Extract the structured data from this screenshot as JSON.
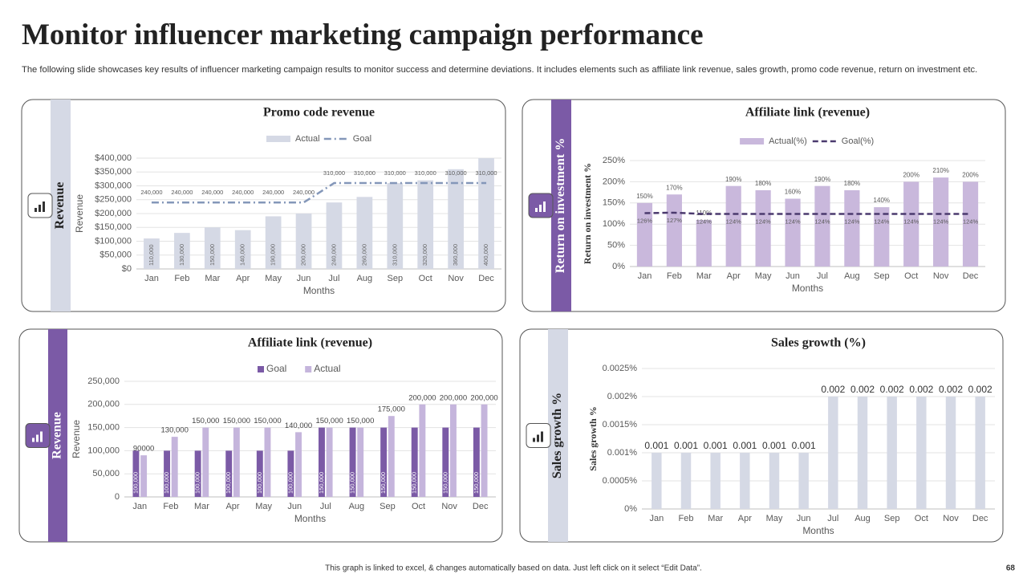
{
  "title": "Monitor influencer marketing campaign performance",
  "subtitle": "The following slide showcases key results of influencer marketing campaign results to monitor success and determine deviations. It includes elements such as affiliate link revenue, sales growth, promo code revenue, return on investment etc.",
  "footer": "This graph is linked to excel, & changes automatically based on data. Just left click on it select “Edit Data”.",
  "page_number": "68",
  "chart_data": [
    {
      "type": "combo",
      "side_label": "Revenue",
      "title": "Promo code revenue",
      "x_label": "Months",
      "y_label": "Revenue",
      "categories": [
        "Jan",
        "Feb",
        "Mar",
        "Apr",
        "May",
        "Jun",
        "Jul",
        "Aug",
        "Sep",
        "Oct",
        "Nov",
        "Dec"
      ],
      "series": [
        {
          "name": "Actual",
          "type": "bar",
          "color": "#d5d9e5",
          "values": [
            110000,
            130000,
            150000,
            140000,
            190000,
            200000,
            240000,
            260000,
            310000,
            320000,
            360000,
            400000
          ],
          "value_labels": [
            "110,000",
            "130,000",
            "150,000",
            "140,000",
            "190,000",
            "200,000",
            "240,000",
            "260,000",
            "310,000",
            "320,000",
            "360,000",
            "400,000"
          ]
        },
        {
          "name": "Goal",
          "type": "line",
          "color": "#8497b9",
          "line_style": "dashdot",
          "values": [
            240000,
            240000,
            240000,
            240000,
            240000,
            240000,
            310000,
            310000,
            310000,
            310000,
            310000,
            310000
          ],
          "value_labels": [
            "240,000",
            "240,000",
            "240,000",
            "240,000",
            "240,000",
            "240,000",
            "310,000",
            "310,000",
            "310,000",
            "310,000",
            "310,000",
            "310,000"
          ]
        }
      ],
      "ylim": [
        0,
        400000
      ],
      "yticks": [
        {
          "value": 0,
          "label": "$0"
        },
        {
          "value": 50000,
          "label": "$50,000"
        },
        {
          "value": 100000,
          "label": "$100,000"
        },
        {
          "value": 150000,
          "label": "$150,000"
        },
        {
          "value": 200000,
          "label": "$200,000"
        },
        {
          "value": 250000,
          "label": "$250,000"
        },
        {
          "value": 300000,
          "label": "$300,000"
        },
        {
          "value": 350000,
          "label": "$350,000"
        },
        {
          "value": 400000,
          "label": "$400,000"
        }
      ],
      "grid": true
    },
    {
      "type": "combo",
      "side_label": "Return on investment %",
      "title": "Affiliate link (revenue)",
      "x_label": "Months",
      "y_label": "Return on investment %",
      "categories": [
        "Jan",
        "Feb",
        "Mar",
        "Apr",
        "May",
        "Jun",
        "Jul",
        "Aug",
        "Sep",
        "Oct",
        "Nov",
        "Dec"
      ],
      "series": [
        {
          "name": "Actual(%)",
          "type": "bar",
          "color": "#c9b8dc",
          "values": [
            150,
            170,
            110,
            190,
            180,
            160,
            190,
            180,
            140,
            200,
            210,
            200
          ],
          "value_labels": [
            "150%",
            "170%",
            "110%",
            "190%",
            "180%",
            "160%",
            "190%",
            "180%",
            "140%",
            "200%",
            "210%",
            "200%"
          ]
        },
        {
          "name": "Goal(%)",
          "type": "line",
          "color": "#4b3a6e",
          "line_style": "dash",
          "values": [
            126,
            127,
            124,
            124,
            124,
            124,
            124,
            124,
            124,
            124,
            124,
            124
          ],
          "value_labels": [
            "126%",
            "127%",
            "124%",
            "124%",
            "124%",
            "124%",
            "124%",
            "124%",
            "124%",
            "124%",
            "124%",
            "124%"
          ]
        }
      ],
      "ylim": [
        0,
        250
      ],
      "yticks": [
        {
          "value": 0,
          "label": "0%"
        },
        {
          "value": 50,
          "label": "50%"
        },
        {
          "value": 100,
          "label": "100%"
        },
        {
          "value": 150,
          "label": "150%"
        },
        {
          "value": 200,
          "label": "200%"
        },
        {
          "value": 250,
          "label": "250%"
        }
      ],
      "grid": true
    },
    {
      "type": "bar",
      "side_label": "Revenue",
      "title": "Affiliate link (revenue)",
      "x_label": "Months",
      "y_label": "Revenue",
      "categories": [
        "Jan",
        "Feb",
        "Mar",
        "Apr",
        "May",
        "Jun",
        "Jul",
        "Aug",
        "Sep",
        "Oct",
        "Nov",
        "Dec"
      ],
      "series": [
        {
          "name": "Goal",
          "type": "bar",
          "color": "#7b5aa6",
          "values": [
            100000,
            100000,
            100000,
            100000,
            100000,
            100000,
            150000,
            150000,
            150000,
            150000,
            150000,
            150000
          ],
          "value_labels": [
            "100,000",
            "100,000",
            "100,000",
            "100,000",
            "100,000",
            "100,000",
            "150,000",
            "150,000",
            "150,000",
            "150,000",
            "150,000",
            "150,000"
          ]
        },
        {
          "name": "Actual",
          "type": "bar",
          "color": "#c5b5dc",
          "values": [
            90000,
            130000,
            150000,
            150000,
            150000,
            140000,
            150000,
            150000,
            175000,
            200000,
            200000,
            200000
          ],
          "value_labels": [
            "90000",
            "130,000",
            "150,000",
            "150,000",
            "150,000",
            "140,000",
            "150,000",
            "150,000",
            "175,000",
            "200,000",
            "200,000",
            "200,000"
          ]
        }
      ],
      "ylim": [
        0,
        250000
      ],
      "yticks": [
        0,
        {
          "value": 50000,
          "label": "50,000"
        },
        {
          "value": 100000,
          "label": "100,000"
        },
        {
          "value": 150000,
          "label": "150,000"
        },
        {
          "value": 200000,
          "label": "200,000"
        },
        {
          "value": 250000,
          "label": "250,000"
        }
      ],
      "grid": true
    },
    {
      "type": "bar",
      "side_label": "Sales growth %",
      "title": "Sales growth (%)",
      "x_label": "Months",
      "y_label": "Sales growth %",
      "categories": [
        "Jan",
        "Feb",
        "Mar",
        "Apr",
        "May",
        "Jun",
        "Jul",
        "Aug",
        "Sep",
        "Oct",
        "Nov",
        "Dec"
      ],
      "series": [
        {
          "type": "bar",
          "color": "#d5d9e5",
          "values": [
            0.001,
            0.001,
            0.001,
            0.001,
            0.001,
            0.001,
            0.002,
            0.002,
            0.002,
            0.002,
            0.002,
            0.002
          ]
        }
      ],
      "ylim": [
        0,
        0.0025
      ],
      "yticks": [
        {
          "value": 0,
          "label": "0%"
        },
        {
          "value": 0.0005,
          "label": "0.0005%"
        },
        {
          "value": 0.001,
          "label": "0.001%"
        },
        {
          "value": 0.0015,
          "label": "0.0015%"
        },
        {
          "value": 0.002,
          "label": "0.002%"
        },
        {
          "value": 0.0025,
          "label": "0.0025%"
        }
      ],
      "grid": true
    }
  ]
}
